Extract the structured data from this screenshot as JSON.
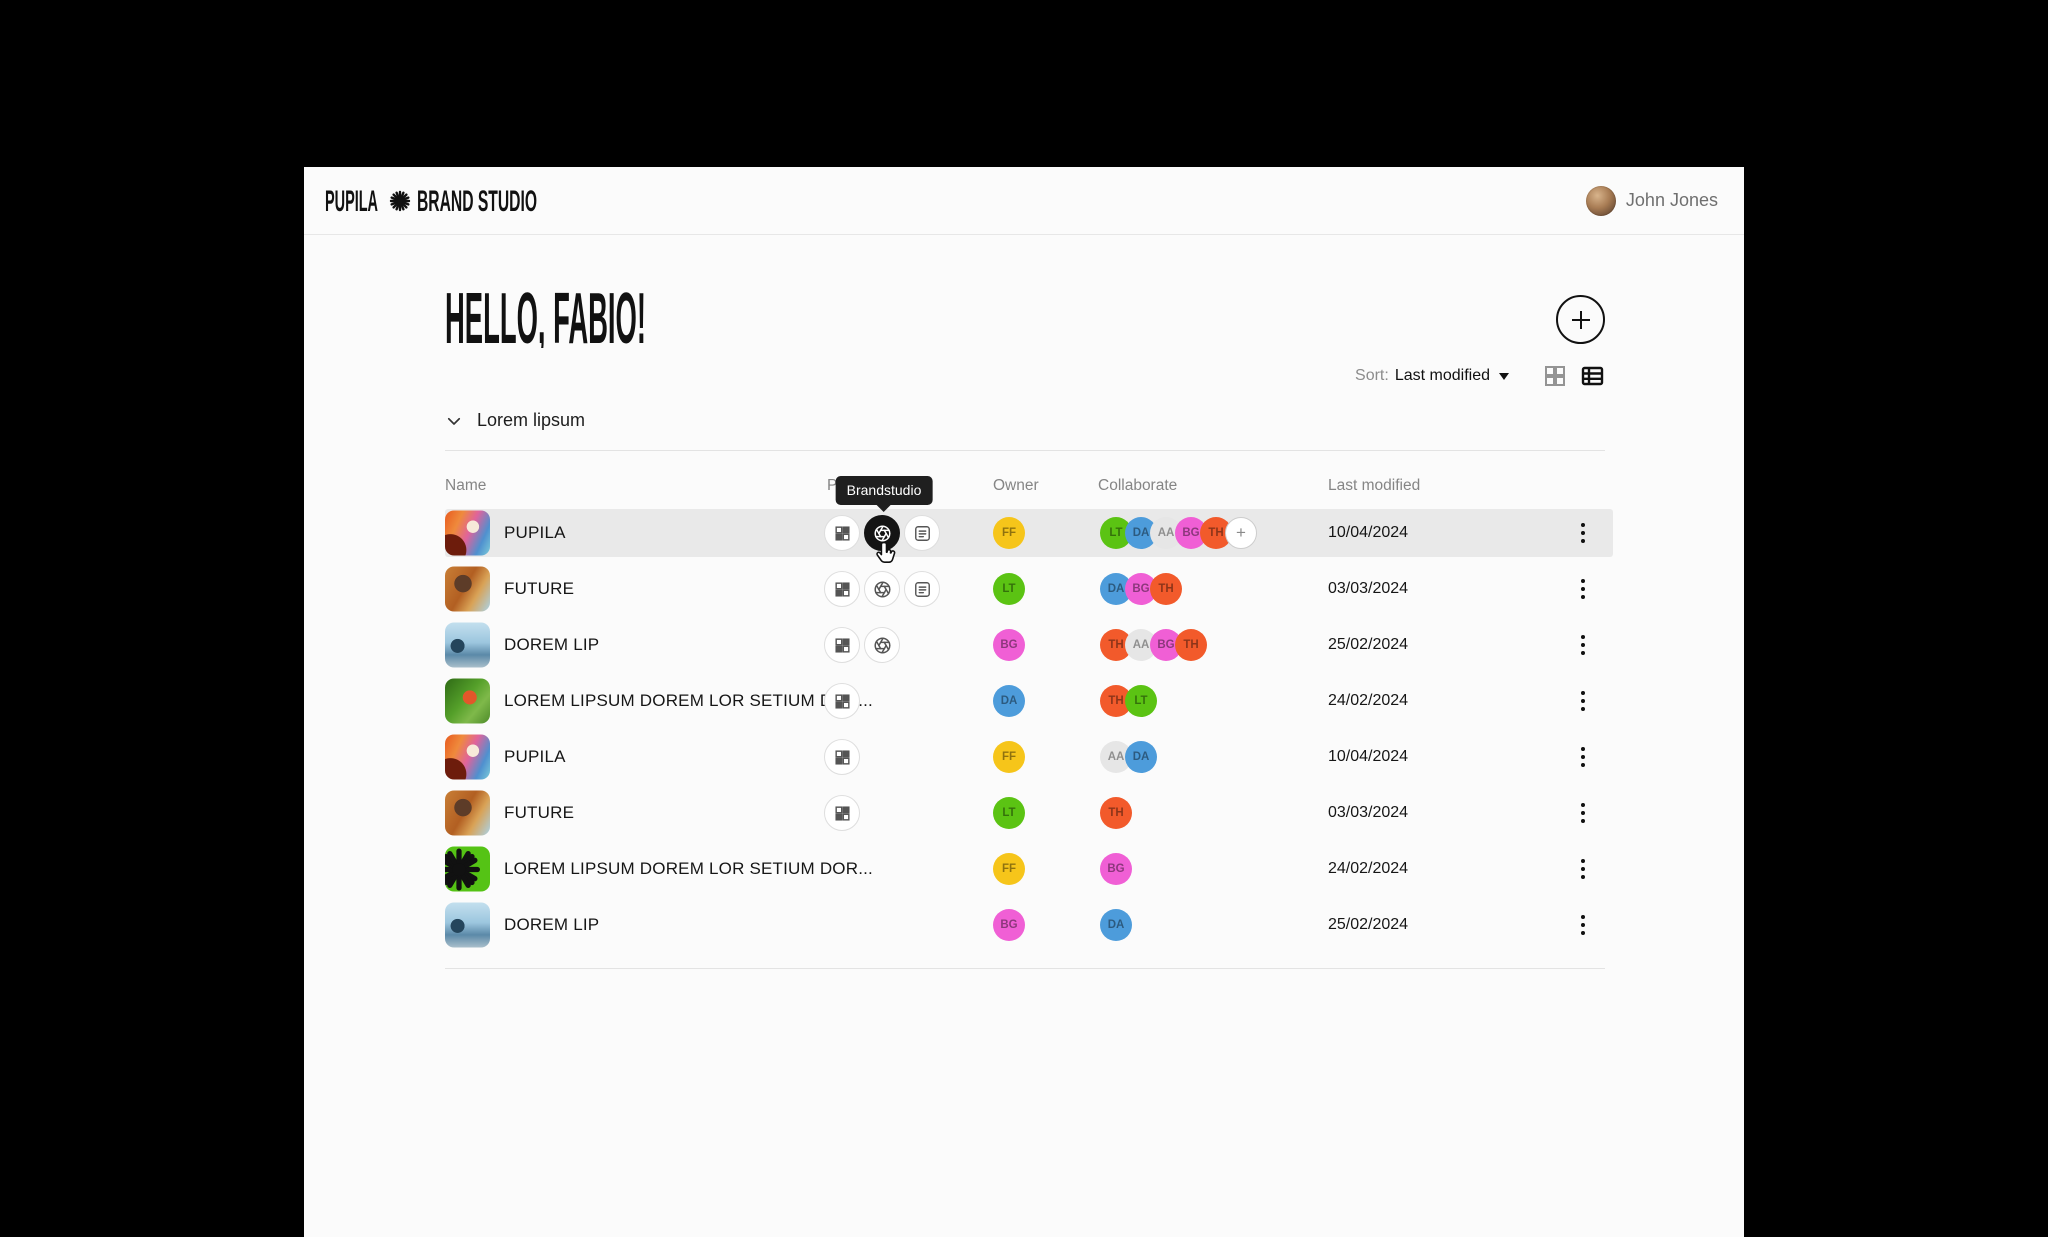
{
  "brand": {
    "logo_left": "PUPILA",
    "logo_right": "BRAND STUDIO"
  },
  "user": {
    "name": "John Jones"
  },
  "page": {
    "greeting": "HELLO, FABIO!"
  },
  "toolbar": {
    "sort_label": "Sort:",
    "sort_value": "Last modified",
    "views": [
      {
        "name": "grid-view",
        "active": false
      },
      {
        "name": "list-view",
        "active": true
      }
    ]
  },
  "section": {
    "title": "Lorem lipsum",
    "state": "expanded"
  },
  "tooltip": {
    "text": "Brandstudio"
  },
  "table": {
    "columns": [
      "Name",
      "Products",
      "Owner",
      "Collaborate",
      "Last modified"
    ],
    "rows": [
      {
        "name": "PUPILA",
        "thumb": "pupila",
        "icons": [
          {
            "type": "grid",
            "active": false
          },
          {
            "type": "aperture",
            "active": true
          },
          {
            "type": "doc",
            "active": false
          }
        ],
        "owner": "FF",
        "collaborators": [
          "LT",
          "DA",
          "AA",
          "BG",
          "TH"
        ],
        "has_add": true,
        "date": "10/04/2024",
        "highlighted": true
      },
      {
        "name": "FUTURE",
        "thumb": "future",
        "icons": [
          {
            "type": "grid",
            "active": false
          },
          {
            "type": "aperture",
            "active": false
          },
          {
            "type": "doc",
            "active": false
          }
        ],
        "owner": "LT",
        "collaborators": [
          "DA",
          "BG",
          "TH"
        ],
        "has_add": false,
        "date": "03/03/2024",
        "highlighted": false
      },
      {
        "name": "DOREM LIP",
        "thumb": "dorem",
        "icons": [
          {
            "type": "grid",
            "active": false
          },
          {
            "type": "aperture",
            "active": false
          }
        ],
        "owner": "BG",
        "collaborators": [
          "TH",
          "AA",
          "BG",
          "TH"
        ],
        "has_add": false,
        "date": "25/02/2024",
        "highlighted": false
      },
      {
        "name": "LOREM LIPSUM DOREM LOR SETIUM DOR...",
        "thumb": "food",
        "icons": [
          {
            "type": "grid",
            "active": false
          }
        ],
        "owner": "DA",
        "collaborators": [
          "TH",
          "LT"
        ],
        "has_add": false,
        "date": "24/02/2024",
        "highlighted": false
      },
      {
        "name": "PUPILA",
        "thumb": "pupila",
        "icons": [
          {
            "type": "grid",
            "active": false
          }
        ],
        "owner": "FF",
        "collaborators": [
          "AA",
          "DA"
        ],
        "has_add": false,
        "date": "10/04/2024",
        "highlighted": false
      },
      {
        "name": "FUTURE",
        "thumb": "future",
        "icons": [
          {
            "type": "grid",
            "active": false
          }
        ],
        "owner": "LT",
        "collaborators": [
          "TH"
        ],
        "has_add": false,
        "date": "03/03/2024",
        "highlighted": false
      },
      {
        "name": "LOREM LIPSUM DOREM LOR SETIUM DOR...",
        "thumb": "brand",
        "icons": [],
        "owner": "FF",
        "collaborators": [
          "BG"
        ],
        "has_add": false,
        "date": "24/02/2024",
        "highlighted": false
      },
      {
        "name": "DOREM LIP",
        "thumb": "dorem",
        "icons": [],
        "owner": "BG",
        "collaborators": [
          "DA"
        ],
        "has_add": false,
        "date": "25/02/2024",
        "highlighted": false
      }
    ]
  },
  "palette": {
    "FF": "#F6C51A",
    "LT": "#5BC313",
    "DA": "#4D9CDB",
    "BG": "#F05FD5",
    "TH": "#F25A2B",
    "AA": "#E6E6E6",
    "row_highlight": "#E9E9E9",
    "canvas": "#FBFBFB",
    "frame": "#000000",
    "tooltip_bg": "#1F1F1F",
    "accent_text": "#111111"
  }
}
